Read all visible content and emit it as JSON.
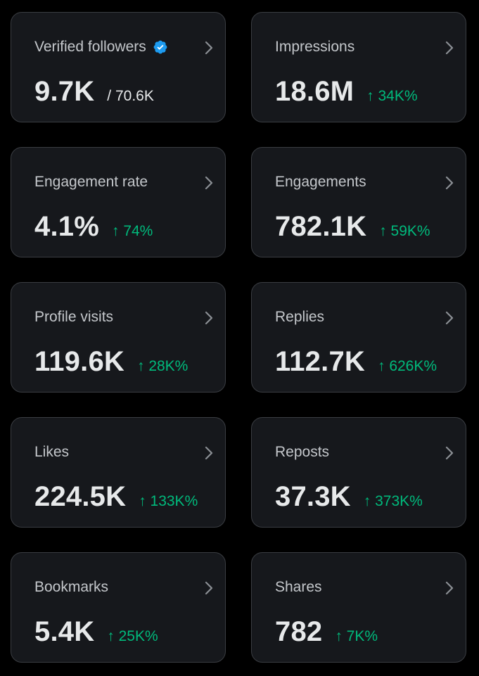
{
  "colors": {
    "background": "#000000",
    "card": "#16181c",
    "border": "#3a3d42",
    "label": "#c4c7cb",
    "value": "#e7e9ea",
    "positive": "#00ba7c",
    "verified": "#1d9bf0"
  },
  "icons": {
    "verified": "verified-badge-icon",
    "chevron": "chevron-right-icon",
    "trend": "arrow-up-icon"
  },
  "cards": [
    {
      "label": "Verified followers",
      "value": "9.7K",
      "total": "/ 70.6K"
    },
    {
      "label": "Impressions",
      "value": "18.6M",
      "change": "↑ 34K%"
    },
    {
      "label": "Engagement rate",
      "value": "4.1%",
      "change": "↑ 74%"
    },
    {
      "label": "Engagements",
      "value": "782.1K",
      "change": "↑ 59K%"
    },
    {
      "label": "Profile visits",
      "value": "119.6K",
      "change": "↑ 28K%"
    },
    {
      "label": "Replies",
      "value": "112.7K",
      "change": "↑ 626K%"
    },
    {
      "label": "Likes",
      "value": "224.5K",
      "change": "↑ 133K%"
    },
    {
      "label": "Reposts",
      "value": "37.3K",
      "change": "↑ 373K%"
    },
    {
      "label": "Bookmarks",
      "value": "5.4K",
      "change": "↑ 25K%"
    },
    {
      "label": "Shares",
      "value": "782",
      "change": "↑ 7K%"
    }
  ]
}
